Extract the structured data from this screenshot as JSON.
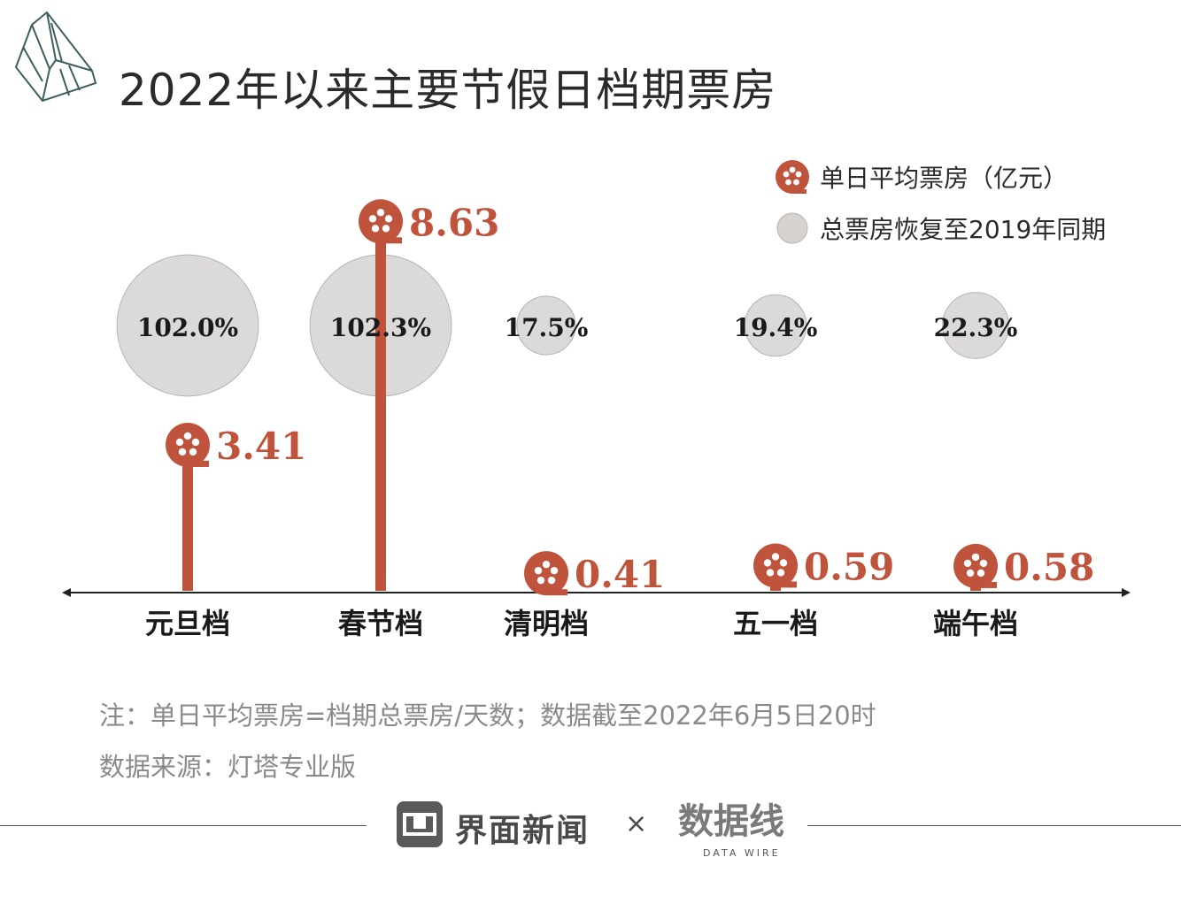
{
  "title": "2022年以来主要节假日档期票房",
  "legend": {
    "avg_label": "单日平均票房（亿元）",
    "recovery_label": "总票房恢复至2019年同期"
  },
  "colors": {
    "accent": "#c0533b",
    "bubble": "#d6d3d1",
    "bubble_stroke": "#b7b3b0",
    "axis": "#222222",
    "text": "#2b2b2b",
    "note": "#8a8a8a"
  },
  "chart_data": {
    "type": "lollipop-bubble",
    "title": "2022年以来主要节假日档期票房",
    "categories": [
      "元旦档",
      "春节档",
      "清明档",
      "五一档",
      "端午档"
    ],
    "series": [
      {
        "name": "单日平均票房（亿元）",
        "values": [
          3.41,
          8.63,
          0.41,
          0.59,
          0.58
        ],
        "labels": [
          "3.41",
          "8.63",
          "0.41",
          "0.59",
          "0.58"
        ]
      },
      {
        "name": "总票房恢复至2019年同期",
        "values": [
          102.0,
          102.3,
          17.5,
          19.4,
          22.3
        ],
        "labels": [
          "102.0%",
          "102.3%",
          "17.5%",
          "19.4%",
          "22.3%"
        ]
      }
    ],
    "ylim": [
      0,
      9
    ]
  },
  "notes": {
    "note_1": "注：单日平均票房=档期总票房/天数；数据截至2022年6月5日20时",
    "note_2": "数据来源：灯塔专业版"
  },
  "footer": {
    "brand": "界面新闻",
    "times": "×",
    "partner": "数据线",
    "partner_sub": "DATA WIRE"
  }
}
